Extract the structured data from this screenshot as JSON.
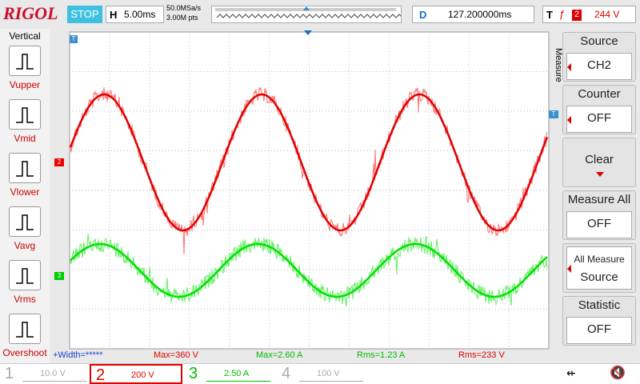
{
  "header": {
    "brand": "RIGOL",
    "run_state": "STOP",
    "timebase_label": "H",
    "timebase": "5.00ms",
    "sample_rate": "50.0MSa/s",
    "memory_depth": "3.00M pts",
    "delay_label": "D",
    "delay": "127.200000ms",
    "trigger_label": "T",
    "trigger_source": "2",
    "trigger_level": "244 V"
  },
  "left_menu": {
    "title": "Vertical",
    "items": [
      "Vupper",
      "Vmid",
      "Vlower",
      "Vavg",
      "Vrms",
      "Overshoot"
    ]
  },
  "right_menu": {
    "title": "Measure",
    "items": [
      {
        "label": "Source",
        "value": "CH2"
      },
      {
        "label": "Counter",
        "value": "OFF"
      },
      {
        "label": "Clear"
      },
      {
        "label": "Measure All",
        "value": "OFF"
      },
      {
        "label": "All Measure",
        "value": "Source"
      },
      {
        "label": "Statistic",
        "value": "OFF"
      }
    ]
  },
  "screen_markers": {
    "trigger_position": "T",
    "ch2": "2",
    "ch3": "3",
    "trigger_level": "T"
  },
  "measurements": [
    "+Width=*****",
    "Max=360 V",
    "Max=2.60 A",
    "Rms=1.23 A",
    "Rms=233 V"
  ],
  "channels": [
    {
      "number": "1",
      "scale": "10.0 V"
    },
    {
      "number": "2",
      "scale": "200 V"
    },
    {
      "number": "3",
      "scale": "2.50 A"
    },
    {
      "number": "4",
      "scale": "100 V"
    }
  ]
}
